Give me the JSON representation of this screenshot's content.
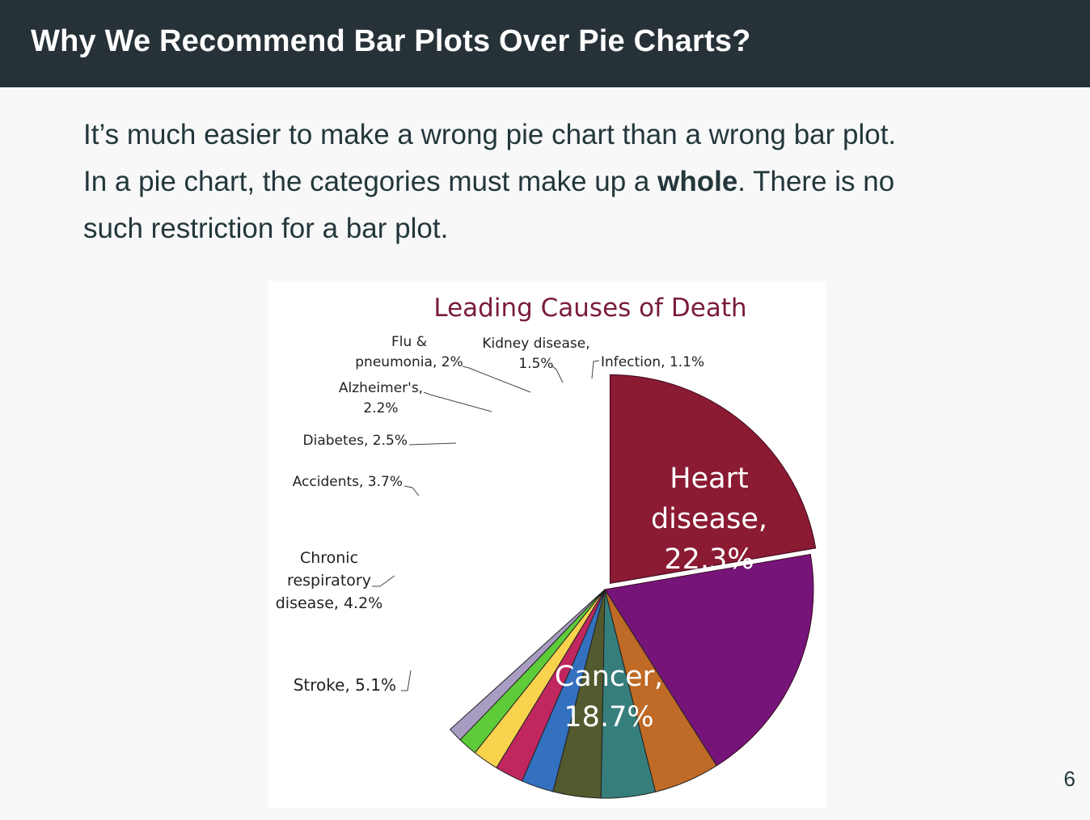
{
  "slide": {
    "title": "Why We Recommend Bar Plots Over Pie Charts?",
    "line1": "It’s much easier to make a wrong pie chart than a wrong bar plot.",
    "line2_before": "In a pie chart, the categories must make up a ",
    "line2_bold": "whole",
    "line2_after": ". There is no",
    "line3": "such restriction for a bar plot.",
    "page_number": "6"
  },
  "chart_data": {
    "type": "pie",
    "title": "Leading Causes of Death",
    "slices": [
      {
        "label": "Heart disease, 22.3%",
        "value": 22.3,
        "color": "#8b1a33"
      },
      {
        "label": "Cancer, 18.7%",
        "value": 18.7,
        "color": "#76147a"
      },
      {
        "label": "Stroke, 5.1%",
        "value": 5.1,
        "color": "#bf6a26"
      },
      {
        "label": "Chronic respiratory disease, 4.2%",
        "value": 4.2,
        "color": "#367e7c"
      },
      {
        "label": "Accidents, 3.7%",
        "value": 3.7,
        "color": "#525a2e"
      },
      {
        "label": "Diabetes, 2.5%",
        "value": 2.5,
        "color": "#3370bf"
      },
      {
        "label": "Alzheimer's, 2.2%",
        "value": 2.2,
        "color": "#c0275f"
      },
      {
        "label": "Flu & pneumonia, 2%",
        "value": 2.0,
        "color": "#f9d34e"
      },
      {
        "label": "Kidney disease, 1.5%",
        "value": 1.5,
        "color": "#5ecb39"
      },
      {
        "label": "Infection, 1.1%",
        "value": 1.1,
        "color": "#a99cc2"
      }
    ]
  }
}
